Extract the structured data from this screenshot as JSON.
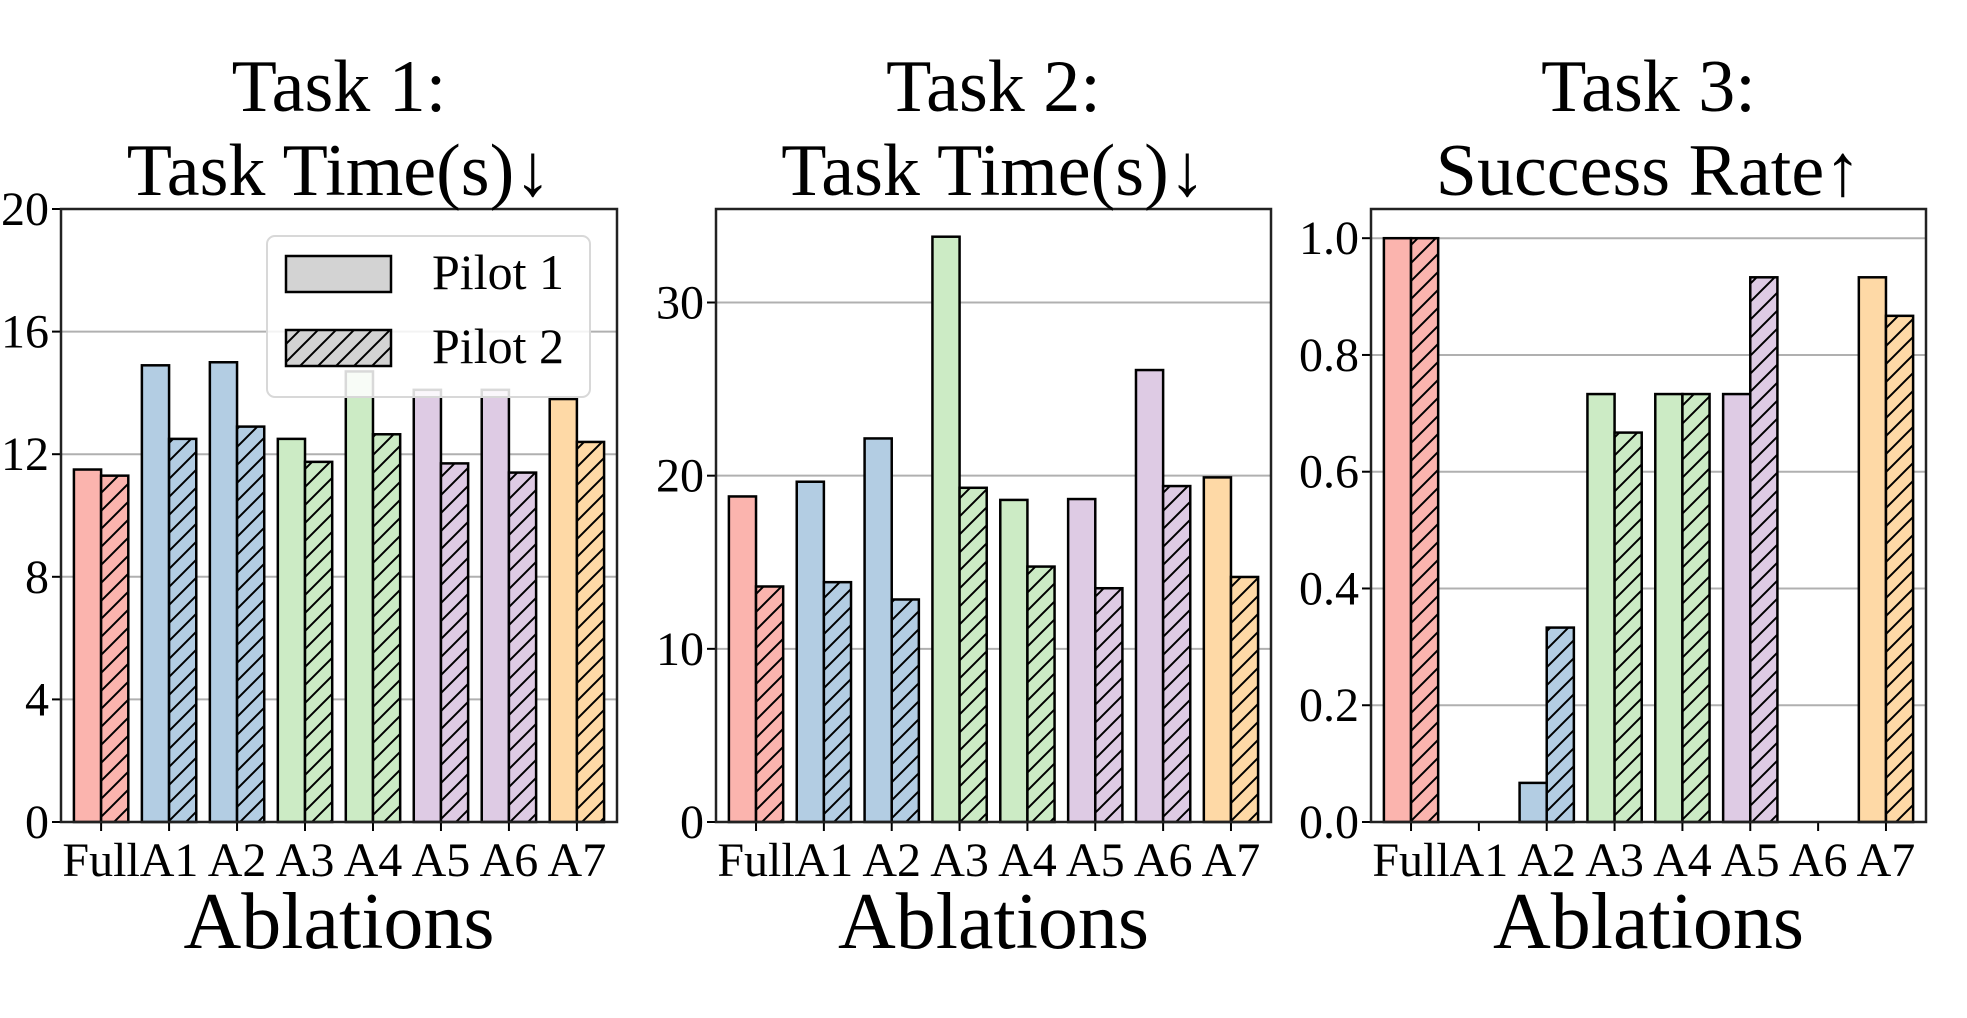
{
  "legend": {
    "placement": "upper-right of first panel",
    "entries": [
      "Pilot 1",
      "Pilot 2"
    ],
    "patch_color": "#d3d3d3"
  },
  "colors": {
    "Full": "#fbb4ae",
    "A1": "#b3cde3",
    "A2": "#b3cde3",
    "A3": "#ccebc5",
    "A4": "#ccebc5",
    "A5": "#decbe4",
    "A6": "#decbe4",
    "A7": "#fed9a6",
    "grid": "#b0b0b0"
  },
  "chart_data": [
    {
      "type": "bar",
      "title": [
        "Task 1:",
        "Task Time(s)↓"
      ],
      "xlabel": "Ablations",
      "ylabel": "",
      "categories": [
        "Full",
        "A1",
        "A2",
        "A3",
        "A4",
        "A5",
        "A6",
        "A7"
      ],
      "series": [
        {
          "name": "Pilot 1",
          "hatch": "none",
          "values": [
            11.5,
            14.9,
            15.0,
            12.5,
            14.7,
            14.1,
            14.1,
            13.8
          ]
        },
        {
          "name": "Pilot 2",
          "hatch": "///",
          "values": [
            11.3,
            12.5,
            12.9,
            11.75,
            12.65,
            11.7,
            11.4,
            12.4
          ]
        }
      ],
      "ylim": [
        0,
        20
      ],
      "yticks": [
        "0",
        "4",
        "8",
        "12",
        "16",
        "20"
      ],
      "ytick_values": [
        0,
        4,
        8,
        12,
        16,
        20
      ],
      "grid": "horizontal",
      "legend": true
    },
    {
      "type": "bar",
      "title": [
        "Task 2:",
        "Task Time(s)↓"
      ],
      "xlabel": "Ablations",
      "ylabel": "",
      "categories": [
        "Full",
        "A1",
        "A2",
        "A3",
        "A4",
        "A5",
        "A6",
        "A7"
      ],
      "series": [
        {
          "name": "Pilot 1",
          "hatch": "none",
          "values": [
            18.8,
            19.65,
            22.15,
            33.8,
            18.6,
            18.65,
            26.1,
            19.9
          ]
        },
        {
          "name": "Pilot 2",
          "hatch": "///",
          "values": [
            13.6,
            13.85,
            12.85,
            19.3,
            14.75,
            13.5,
            19.4,
            14.15
          ]
        }
      ],
      "ylim": [
        0,
        35.4
      ],
      "yticks": [
        "0",
        "10",
        "20",
        "30"
      ],
      "ytick_values": [
        0,
        10,
        20,
        30
      ],
      "grid": "horizontal",
      "legend": false
    },
    {
      "type": "bar",
      "title": [
        "Task 3:",
        "Success Rate↑"
      ],
      "xlabel": "Ablations",
      "ylabel": "",
      "categories": [
        "Full",
        "A1",
        "A2",
        "A3",
        "A4",
        "A5",
        "A6",
        "A7"
      ],
      "series": [
        {
          "name": "Pilot 1",
          "hatch": "none",
          "values": [
            1.0,
            0.0,
            0.067,
            0.733,
            0.733,
            0.733,
            0.0,
            0.933
          ]
        },
        {
          "name": "Pilot 2",
          "hatch": "///",
          "values": [
            1.0,
            0.0,
            0.333,
            0.667,
            0.733,
            0.933,
            0.0,
            0.867
          ]
        }
      ],
      "ylim": [
        0,
        1.05
      ],
      "yticks": [
        "0.0",
        "0.2",
        "0.4",
        "0.6",
        "0.8",
        "1.0"
      ],
      "ytick_values": [
        0,
        0.2,
        0.4,
        0.6,
        0.8,
        1.0
      ],
      "grid": "horizontal",
      "legend": false
    }
  ]
}
